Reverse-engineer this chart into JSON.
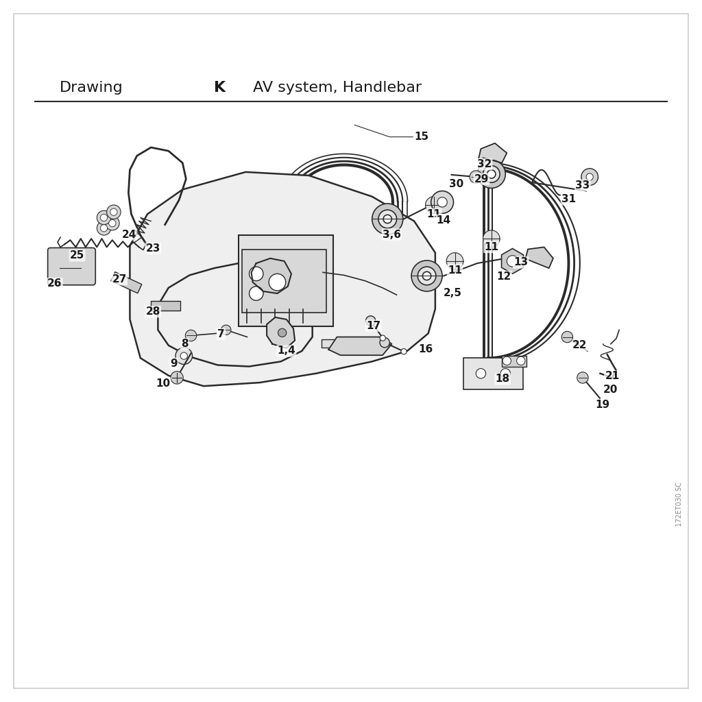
{
  "title_left": "Drawing",
  "title_mid": "K",
  "title_right": "AV system, Handlebar",
  "watermark": "172ET030 SC",
  "bg_color": "#ffffff",
  "border_color": "#cccccc",
  "text_color": "#1a1a1a",
  "line_color": "#2a2a2a",
  "title_fontsize": 16,
  "label_fontsize": 11
}
